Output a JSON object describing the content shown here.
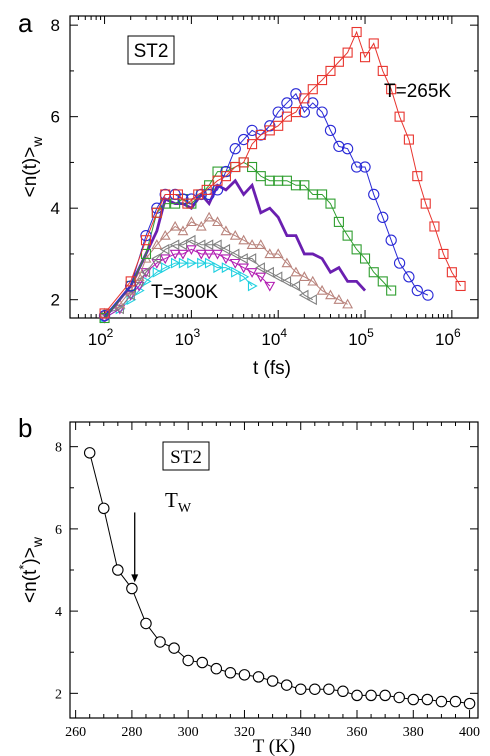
{
  "panel_a": {
    "letter": "a",
    "box_label": "ST2",
    "label_high": "T=265K",
    "label_low": "T=300K",
    "colors": {
      "red": "#e8352f",
      "blue": "#2a2ad6",
      "green": "#2f9e2f",
      "purple": "#6a1fb0",
      "brown": "#b9837c",
      "gray": "#808080",
      "magenta": "#b21cb2",
      "cyan": "#20d0e0"
    }
  },
  "panel_b": {
    "letter": "b",
    "box_label": "ST2",
    "arrow_label": "T",
    "arrow_sub": "W"
  },
  "chart_data": [
    {
      "type": "line",
      "panel": "a",
      "xlabel": "t (fs)",
      "ylabel": "<n(t)>w",
      "xscale": "log",
      "xlim": [
        40,
        2000000
      ],
      "ylim": [
        1.6,
        8.2
      ],
      "xticks": [
        100,
        1000,
        10000,
        100000,
        1000000
      ],
      "xtick_labels": [
        "10^2",
        "10^3",
        "10^4",
        "10^5",
        "10^6"
      ],
      "yticks": [
        2,
        4,
        6,
        8
      ],
      "series": [
        {
          "marker": "square",
          "color": "red",
          "x": [
            100,
            200,
            300,
            400,
            500,
            700,
            900,
            1200,
            1500,
            2000,
            2500,
            3200,
            4000,
            5000,
            6300,
            8000,
            10000,
            12600,
            16000,
            20000,
            25000,
            32000,
            40000,
            50000,
            63000,
            80000,
            100000,
            126000,
            160000,
            200000,
            250000,
            320000,
            400000,
            500000,
            630000,
            800000,
            1000000,
            1260000
          ],
          "y": [
            1.7,
            2.4,
            3.3,
            3.9,
            4.3,
            4.3,
            4.1,
            4.3,
            4.4,
            4.6,
            4.7,
            4.9,
            5.0,
            5.4,
            5.6,
            5.7,
            5.8,
            6.0,
            6.1,
            6.4,
            6.6,
            6.8,
            7.0,
            7.2,
            7.4,
            7.85,
            7.3,
            7.6,
            7.0,
            6.6,
            6.0,
            5.5,
            4.7,
            4.1,
            3.6,
            3.0,
            2.6,
            2.3
          ]
        },
        {
          "marker": "circle",
          "color": "blue",
          "x": [
            100,
            200,
            300,
            400,
            500,
            650,
            800,
            1000,
            1300,
            1600,
            2000,
            2500,
            3200,
            4000,
            5000,
            6300,
            8000,
            10000,
            12600,
            16000,
            20000,
            25000,
            32000,
            40000,
            50000,
            63000,
            80000,
            100000,
            126000,
            160000,
            200000,
            250000,
            320000,
            400000,
            530000
          ],
          "y": [
            1.65,
            2.3,
            3.4,
            4.0,
            4.3,
            4.3,
            4.2,
            4.2,
            4.3,
            4.3,
            4.4,
            4.8,
            5.3,
            5.5,
            5.7,
            5.6,
            5.8,
            6.1,
            6.3,
            6.5,
            6.1,
            6.3,
            6.1,
            5.7,
            5.35,
            5.3,
            4.9,
            4.9,
            4.3,
            3.8,
            3.3,
            2.8,
            2.5,
            2.2,
            2.1
          ]
        },
        {
          "marker": "square",
          "color": "green",
          "x": [
            100,
            200,
            300,
            400,
            500,
            650,
            800,
            1000,
            1300,
            1600,
            2000,
            2500,
            3200,
            4000,
            5000,
            6300,
            8000,
            10000,
            12600,
            16000,
            20000,
            25000,
            32000,
            40000,
            50000,
            63000,
            80000,
            100000,
            126000,
            160000,
            200000
          ],
          "y": [
            1.6,
            2.3,
            3.0,
            3.9,
            4.1,
            4.1,
            4.2,
            4.1,
            4.3,
            4.5,
            4.8,
            4.8,
            4.9,
            5.0,
            4.9,
            4.7,
            4.6,
            4.6,
            4.6,
            4.5,
            4.5,
            4.3,
            4.3,
            4.1,
            3.7,
            3.4,
            3.1,
            2.9,
            2.6,
            2.4,
            2.2
          ]
        },
        {
          "marker": "none",
          "color": "purple",
          "x": [
            100,
            200,
            300,
            400,
            500,
            650,
            800,
            1000,
            1300,
            1600,
            2000,
            2500,
            3200,
            4000,
            5000,
            6300,
            8000,
            10000,
            12600,
            16000,
            20000,
            25000,
            32000,
            40000,
            50000,
            63000,
            80000,
            100000
          ],
          "y": [
            1.6,
            2.3,
            3.0,
            3.5,
            4.2,
            4.1,
            4.1,
            4.0,
            4.3,
            4.1,
            4.5,
            4.4,
            4.6,
            4.3,
            4.5,
            3.9,
            4.0,
            3.8,
            3.4,
            3.4,
            3.0,
            3.0,
            2.9,
            2.6,
            2.7,
            2.4,
            2.4,
            2.2
          ]
        },
        {
          "marker": "triangle-up",
          "color": "brown",
          "x": [
            100,
            150,
            200,
            250,
            300,
            400,
            500,
            650,
            800,
            1000,
            1300,
            1600,
            2000,
            2500,
            3200,
            4000,
            5000,
            6300,
            8000,
            10000,
            12600,
            16000,
            20000,
            25000,
            32000,
            40000,
            50000,
            63000
          ],
          "y": [
            1.7,
            1.9,
            2.2,
            2.5,
            2.9,
            3.2,
            3.4,
            3.6,
            3.5,
            3.7,
            3.6,
            3.8,
            3.7,
            3.5,
            3.4,
            3.3,
            3.2,
            3.2,
            3.0,
            3.0,
            2.8,
            2.6,
            2.5,
            2.4,
            2.2,
            2.1,
            2.0,
            1.9
          ]
        },
        {
          "marker": "triangle-left",
          "color": "gray",
          "x": [
            100,
            150,
            200,
            250,
            300,
            400,
            500,
            650,
            800,
            1000,
            1300,
            1600,
            2000,
            2500,
            3200,
            4000,
            5000,
            6300,
            8000,
            10000,
            12600,
            16000,
            20000,
            25000
          ],
          "y": [
            1.7,
            1.8,
            2.1,
            2.4,
            2.6,
            2.9,
            3.1,
            3.2,
            3.2,
            3.3,
            3.2,
            3.2,
            3.2,
            3.1,
            3.0,
            2.9,
            2.9,
            2.7,
            2.6,
            2.5,
            2.4,
            2.3,
            2.1,
            2.0
          ]
        },
        {
          "marker": "triangle-down",
          "color": "magenta",
          "x": [
            100,
            150,
            200,
            250,
            300,
            400,
            500,
            650,
            800,
            1000,
            1300,
            1600,
            2000,
            2500,
            3200,
            4000,
            5000,
            6300,
            8000
          ],
          "y": [
            1.6,
            1.8,
            2.1,
            2.3,
            2.6,
            2.8,
            2.9,
            3.0,
            3.0,
            3.1,
            3.0,
            3.0,
            3.0,
            2.9,
            2.8,
            2.7,
            2.6,
            2.5,
            2.3
          ]
        },
        {
          "marker": "triangle-right",
          "color": "cyan",
          "x": [
            100,
            150,
            200,
            250,
            300,
            400,
            500,
            650,
            800,
            1000,
            1300,
            1600,
            2000,
            2500,
            3200,
            4000,
            5000
          ],
          "y": [
            1.6,
            1.8,
            2.0,
            2.2,
            2.4,
            2.6,
            2.7,
            2.8,
            2.8,
            2.8,
            2.8,
            2.8,
            2.7,
            2.7,
            2.6,
            2.5,
            2.3
          ]
        }
      ]
    },
    {
      "type": "line",
      "panel": "b",
      "xlabel": "T (K)",
      "ylabel": "<n(t*)>w",
      "xlim": [
        258,
        403
      ],
      "ylim": [
        1.4,
        8.6
      ],
      "xticks": [
        260,
        280,
        300,
        320,
        340,
        360,
        380,
        400
      ],
      "yticks": [
        2,
        4,
        6,
        8
      ],
      "arrow_at": {
        "x": 281,
        "y_from": 6.4,
        "y_to": 4.7
      },
      "series": [
        {
          "marker": "circle",
          "color": "black",
          "x": [
            265,
            270,
            275,
            280,
            285,
            290,
            295,
            300,
            305,
            310,
            315,
            320,
            325,
            330,
            335,
            340,
            345,
            350,
            355,
            360,
            365,
            370,
            375,
            380,
            385,
            390,
            395,
            400
          ],
          "y": [
            7.85,
            6.5,
            5.0,
            4.55,
            3.7,
            3.25,
            3.1,
            2.8,
            2.75,
            2.6,
            2.5,
            2.45,
            2.4,
            2.3,
            2.2,
            2.1,
            2.1,
            2.1,
            2.05,
            1.95,
            1.95,
            1.95,
            1.9,
            1.85,
            1.85,
            1.8,
            1.8,
            1.75
          ]
        }
      ]
    }
  ]
}
